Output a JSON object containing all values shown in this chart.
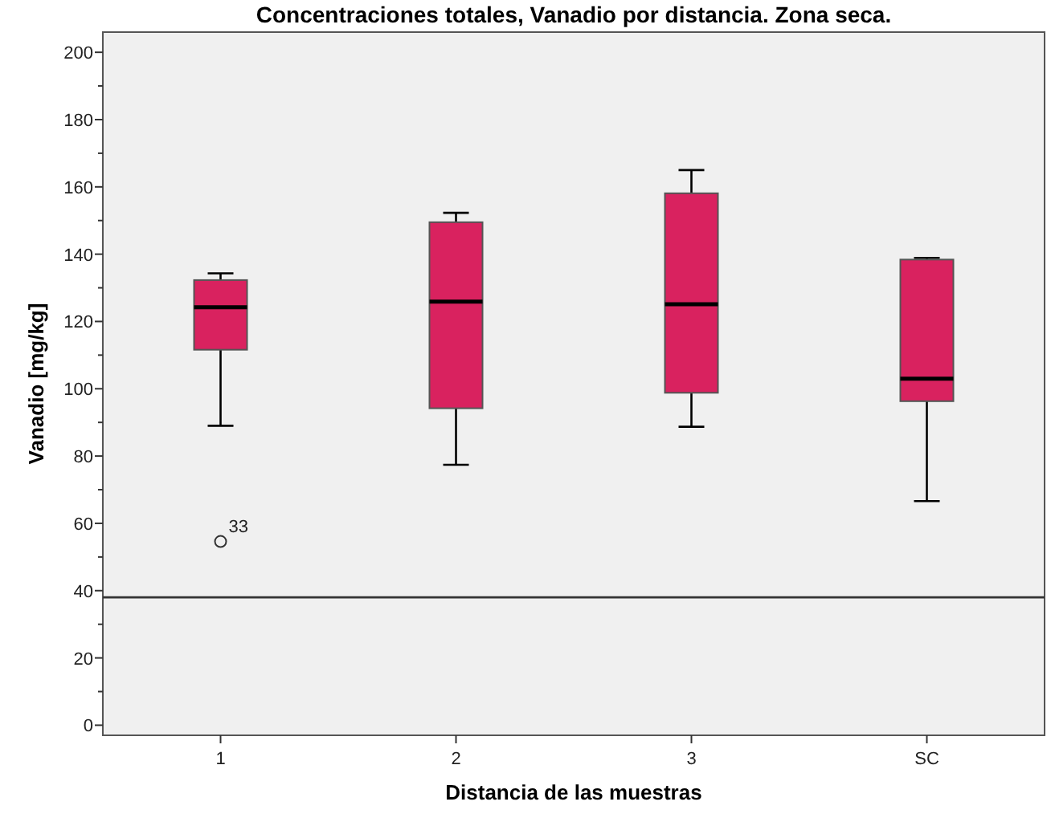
{
  "chart_data": {
    "type": "box",
    "title": "Concentraciones totales, Vanadio por distancia. Zona seca.",
    "xlabel": "Distancia de las muestras",
    "ylabel": "Vanadio [mg/kg]",
    "categories": [
      "1",
      "2",
      "3",
      "SC"
    ],
    "boxes": [
      {
        "low": 89,
        "q1": 111.6,
        "median": 124.2,
        "q3": 132.3,
        "high": 134.3,
        "outliers": [
          54.6
        ]
      },
      {
        "low": 77.4,
        "q1": 94.2,
        "median": 125.9,
        "q3": 149.5,
        "high": 152.3
      },
      {
        "low": 88.7,
        "q1": 98.8,
        "median": 125.1,
        "q3": 158.1,
        "high": 165
      },
      {
        "low": 66.6,
        "q1": 96.3,
        "median": 103,
        "q3": 138.4,
        "high": 138.9
      }
    ],
    "color": "#d9225f",
    "ylim": [
      -3,
      206
    ],
    "yticks": [
      0,
      20,
      40,
      60,
      80,
      100,
      120,
      140,
      160,
      180,
      200
    ],
    "ref_lines": [
      {
        "axis": "y",
        "value": 38,
        "color": "#333333"
      }
    ],
    "annotations": [
      "33"
    ],
    "grid": false
  }
}
